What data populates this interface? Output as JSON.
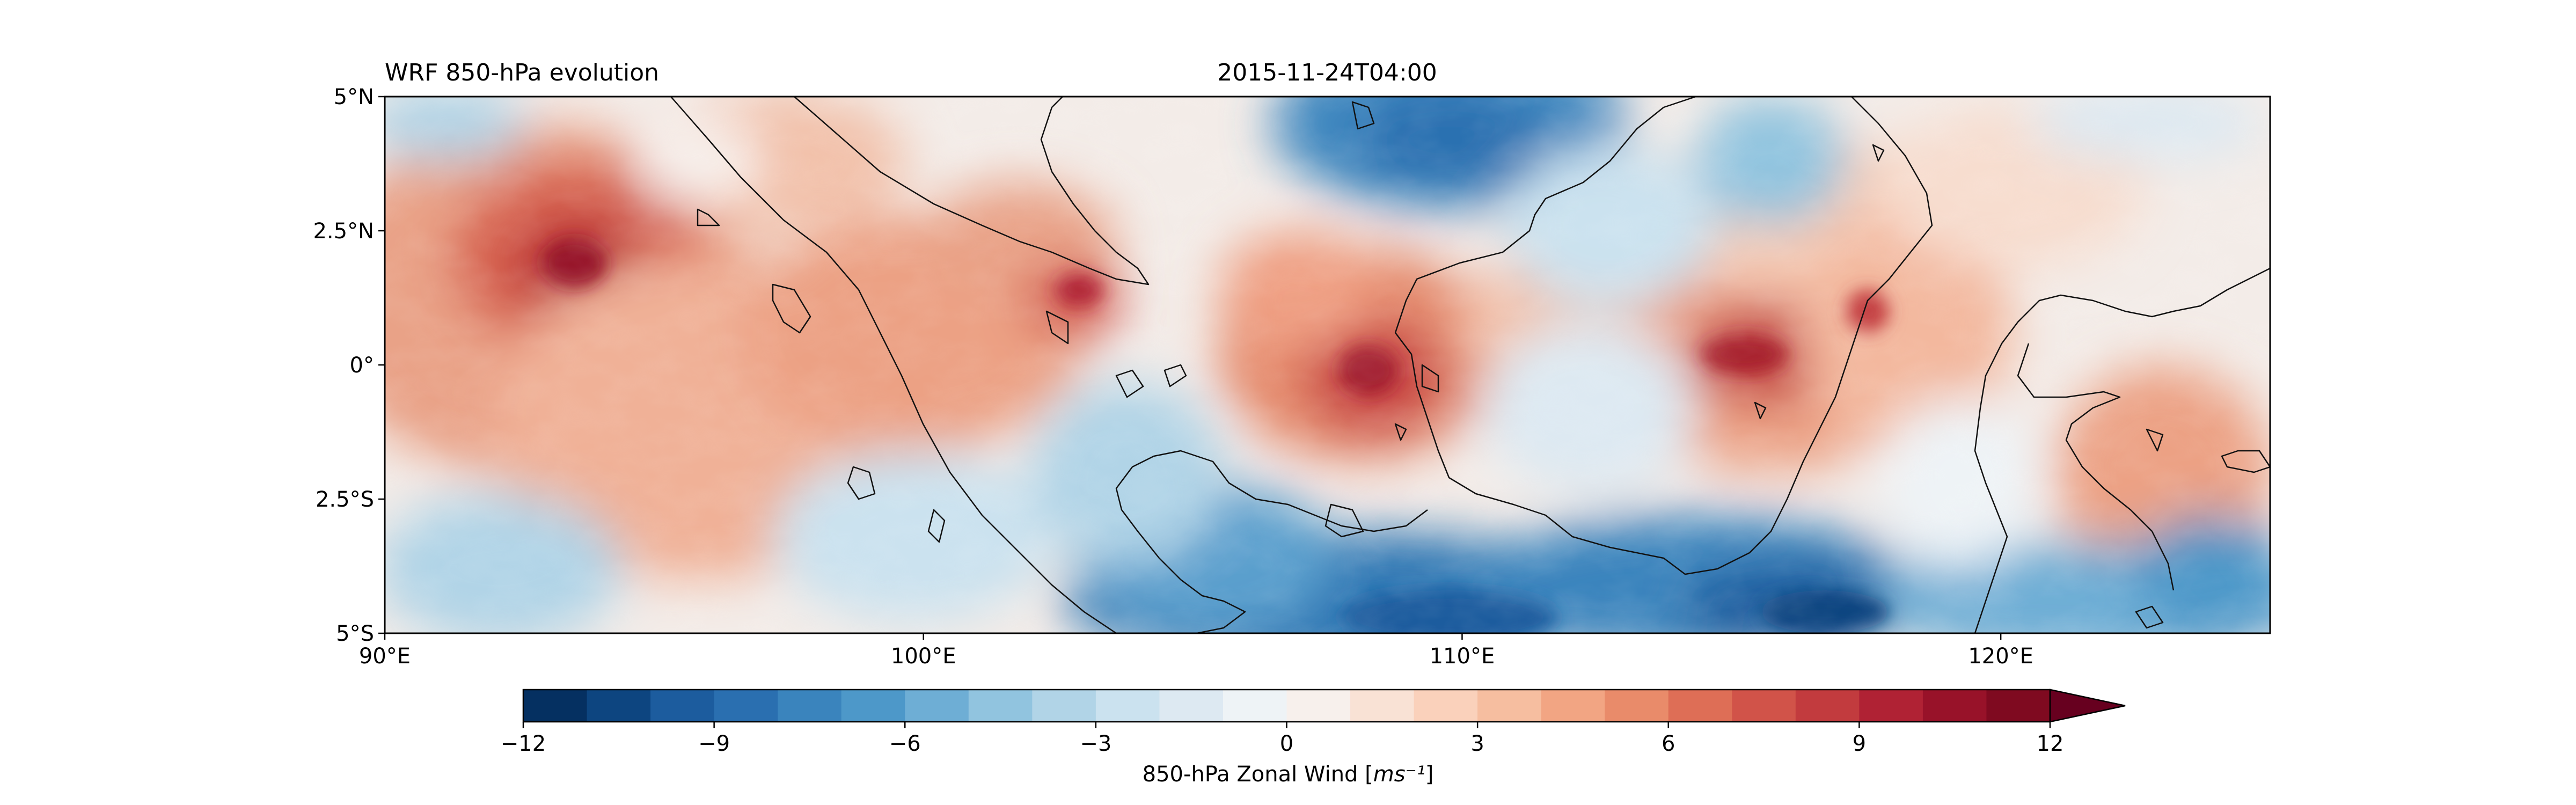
{
  "figure": {
    "title_left": "WRF 850-hPa evolution",
    "title_center": "2015-11-24T04:00"
  },
  "map": {
    "lon_ticks": [
      {
        "value": 90,
        "label": "90°E"
      },
      {
        "value": 100,
        "label": "100°E"
      },
      {
        "value": 110,
        "label": "110°E"
      },
      {
        "value": 120,
        "label": "120°E"
      }
    ],
    "lat_ticks": [
      {
        "value": 5,
        "label": "5°N"
      },
      {
        "value": 2.5,
        "label": "2.5°N"
      },
      {
        "value": 0,
        "label": "0°"
      },
      {
        "value": -2.5,
        "label": "2.5°S"
      },
      {
        "value": -5,
        "label": "5°S"
      }
    ],
    "lon_range": [
      90,
      125
    ],
    "lat_range": [
      -5,
      5
    ],
    "coastlines": "on"
  },
  "colorbar": {
    "label": "850-hPa Zonal Wind [ms⁻¹]",
    "range": [
      -12,
      12
    ],
    "step": 1,
    "extend": "max",
    "ticks": [
      {
        "value": -12,
        "label": "−12"
      },
      {
        "value": -9,
        "label": "−9"
      },
      {
        "value": -6,
        "label": "−6"
      },
      {
        "value": -3,
        "label": "−3"
      },
      {
        "value": 0,
        "label": "0"
      },
      {
        "value": 3,
        "label": "3"
      },
      {
        "value": 6,
        "label": "6"
      },
      {
        "value": 9,
        "label": "9"
      },
      {
        "value": 12,
        "label": "12"
      }
    ],
    "colors": [
      "#053061",
      "#0d4580",
      "#1c5c9e",
      "#2a6fb0",
      "#3a84bd",
      "#4d98c9",
      "#6eaed5",
      "#91c4df",
      "#b1d4e7",
      "#cbe2ef",
      "#dde9f2",
      "#eef3f6",
      "#f7f0ec",
      "#f9e2d5",
      "#fad1bb",
      "#f6bea0",
      "#f2a583",
      "#e98b6a",
      "#de6e56",
      "#d15349",
      "#c23b3e",
      "#b02234",
      "#981229",
      "#7f0a20"
    ],
    "extend_color": "#67001f"
  }
}
